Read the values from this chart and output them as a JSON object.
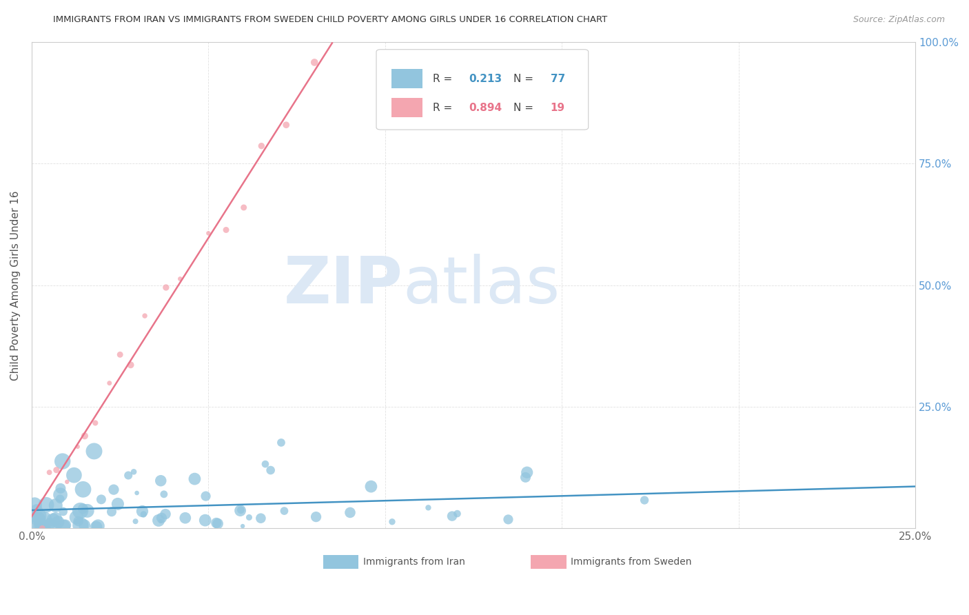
{
  "title": "IMMIGRANTS FROM IRAN VS IMMIGRANTS FROM SWEDEN CHILD POVERTY AMONG GIRLS UNDER 16 CORRELATION CHART",
  "source": "Source: ZipAtlas.com",
  "ylabel": "Child Poverty Among Girls Under 16",
  "iran_color": "#92c5de",
  "sweden_color": "#f4a6b0",
  "iran_line_color": "#4393c3",
  "sweden_line_color": "#e8748a",
  "iran_R": 0.213,
  "iran_N": 77,
  "sweden_R": 0.894,
  "sweden_N": 19,
  "watermark_zip": "ZIP",
  "watermark_atlas": "atlas",
  "xlim": [
    0.0,
    0.25
  ],
  "ylim": [
    0.0,
    1.0
  ],
  "right_ytick_color": "#5b9bd5",
  "grid_color": "#e0e0e0"
}
